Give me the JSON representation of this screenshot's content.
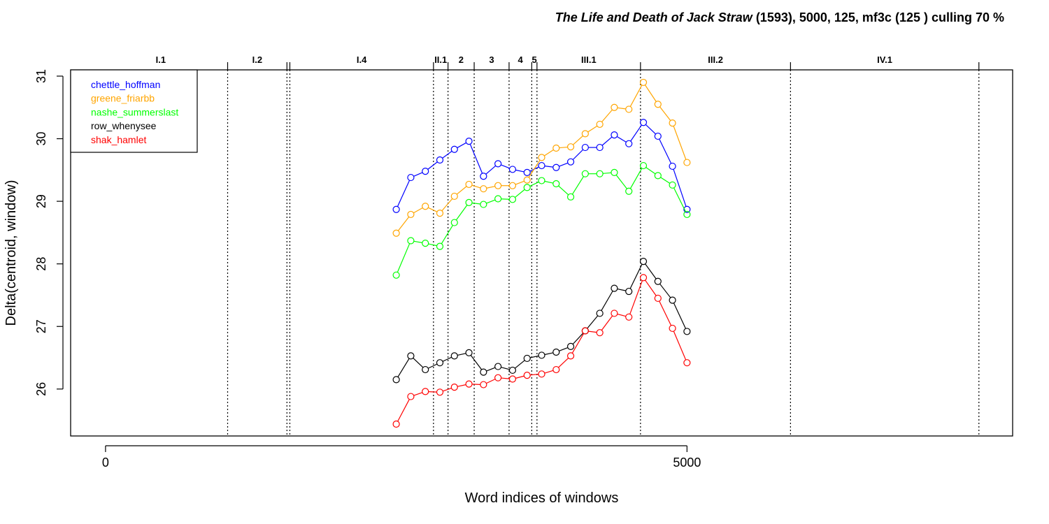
{
  "chart_data": {
    "type": "line",
    "title": {
      "italic": "The Life and Death of Jack Straw",
      "rest": " (1593), 5000, 125, mf3c (125 ) culling 70 %"
    },
    "xlabel": "Word indices of windows",
    "ylabel": "Delta(centroid, window)",
    "xlim": [
      -300,
      7800
    ],
    "ylim": [
      25.25,
      31.1
    ],
    "x_ticks": [
      0,
      5000
    ],
    "y_ticks": [
      26,
      27,
      28,
      29,
      30,
      31
    ],
    "legend_position": "top-left",
    "x": [
      2500,
      2625,
      2750,
      2875,
      3000,
      3125,
      3250,
      3375,
      3500,
      3625,
      3750,
      3875,
      4000,
      4125,
      4250,
      4375,
      4500,
      4625,
      4750,
      4875,
      5000
    ],
    "series": [
      {
        "name": "chettle_hoffman",
        "color": "#0000ff",
        "values": [
          28.87,
          29.38,
          29.48,
          29.66,
          29.83,
          29.96,
          29.4,
          29.6,
          29.51,
          29.46,
          29.57,
          29.54,
          29.63,
          29.86,
          29.86,
          30.06,
          29.92,
          30.26,
          30.04,
          29.56,
          28.87
        ]
      },
      {
        "name": "greene_friarbb",
        "color": "#ffa500",
        "values": [
          28.49,
          28.79,
          28.92,
          28.81,
          29.08,
          29.27,
          29.2,
          29.25,
          29.25,
          29.34,
          29.7,
          29.85,
          29.87,
          30.08,
          30.23,
          30.5,
          30.47,
          30.9,
          30.55,
          30.25,
          29.62
        ]
      },
      {
        "name": "nashe_summerslast",
        "color": "#00ff00",
        "values": [
          27.82,
          28.37,
          28.33,
          28.28,
          28.66,
          28.98,
          28.95,
          29.04,
          29.03,
          29.22,
          29.33,
          29.28,
          29.07,
          29.44,
          29.44,
          29.46,
          29.16,
          29.57,
          29.41,
          29.26,
          28.79
        ]
      },
      {
        "name": "row_whenysee",
        "color": "#000000",
        "values": [
          26.15,
          26.53,
          26.31,
          26.42,
          26.53,
          26.58,
          26.27,
          26.36,
          26.3,
          26.49,
          26.54,
          26.59,
          26.68,
          26.93,
          27.21,
          27.61,
          27.56,
          28.04,
          27.72,
          27.42,
          26.92
        ]
      },
      {
        "name": "shak_hamlet",
        "color": "#ff0000",
        "values": [
          25.44,
          25.88,
          25.96,
          25.95,
          26.03,
          26.08,
          26.07,
          26.18,
          26.16,
          26.22,
          26.24,
          26.31,
          26.53,
          26.93,
          26.9,
          27.21,
          27.15,
          27.78,
          27.45,
          26.97,
          26.42
        ]
      }
    ],
    "scene_markers": [
      {
        "label": "I.1",
        "start": -100,
        "end": 1050,
        "line": 1050,
        "line_style": "solid"
      },
      {
        "label": "I.2",
        "start": 1050,
        "end": 1560,
        "line": 1560,
        "line_style": "solid"
      },
      {
        "label": "",
        "start": 1560,
        "end": 1585,
        "line": 1585,
        "line_style": "solid"
      },
      {
        "label": "I.4",
        "start": 1585,
        "end": 2820,
        "line": 2820,
        "line_style": "solid"
      },
      {
        "label": "II.1",
        "start": 2820,
        "end": 2945,
        "line": 2945,
        "line_style": "solid"
      },
      {
        "label": "2",
        "start": 2945,
        "end": 3170,
        "line": 3170,
        "line_style": "solid"
      },
      {
        "label": "3",
        "start": 3170,
        "end": 3470,
        "line": 3470,
        "line_style": "solid"
      },
      {
        "label": "4",
        "start": 3470,
        "end": 3665,
        "line": 3665,
        "line_style": "solid"
      },
      {
        "label": "5",
        "start": 3665,
        "end": 3710,
        "line": 3710,
        "line_style": "solid"
      },
      {
        "label": "III.1",
        "start": 3710,
        "end": 4600,
        "line": 4600,
        "line_style": "solid"
      },
      {
        "label": "III.2",
        "start": 4600,
        "end": 5890,
        "line": 5890,
        "line_style": "solid"
      },
      {
        "label": "IV.1",
        "start": 5890,
        "end": 7510,
        "line": 7510,
        "line_style": "solid"
      }
    ],
    "scene_line_style": "dotted below the frame top, solid tick above"
  }
}
